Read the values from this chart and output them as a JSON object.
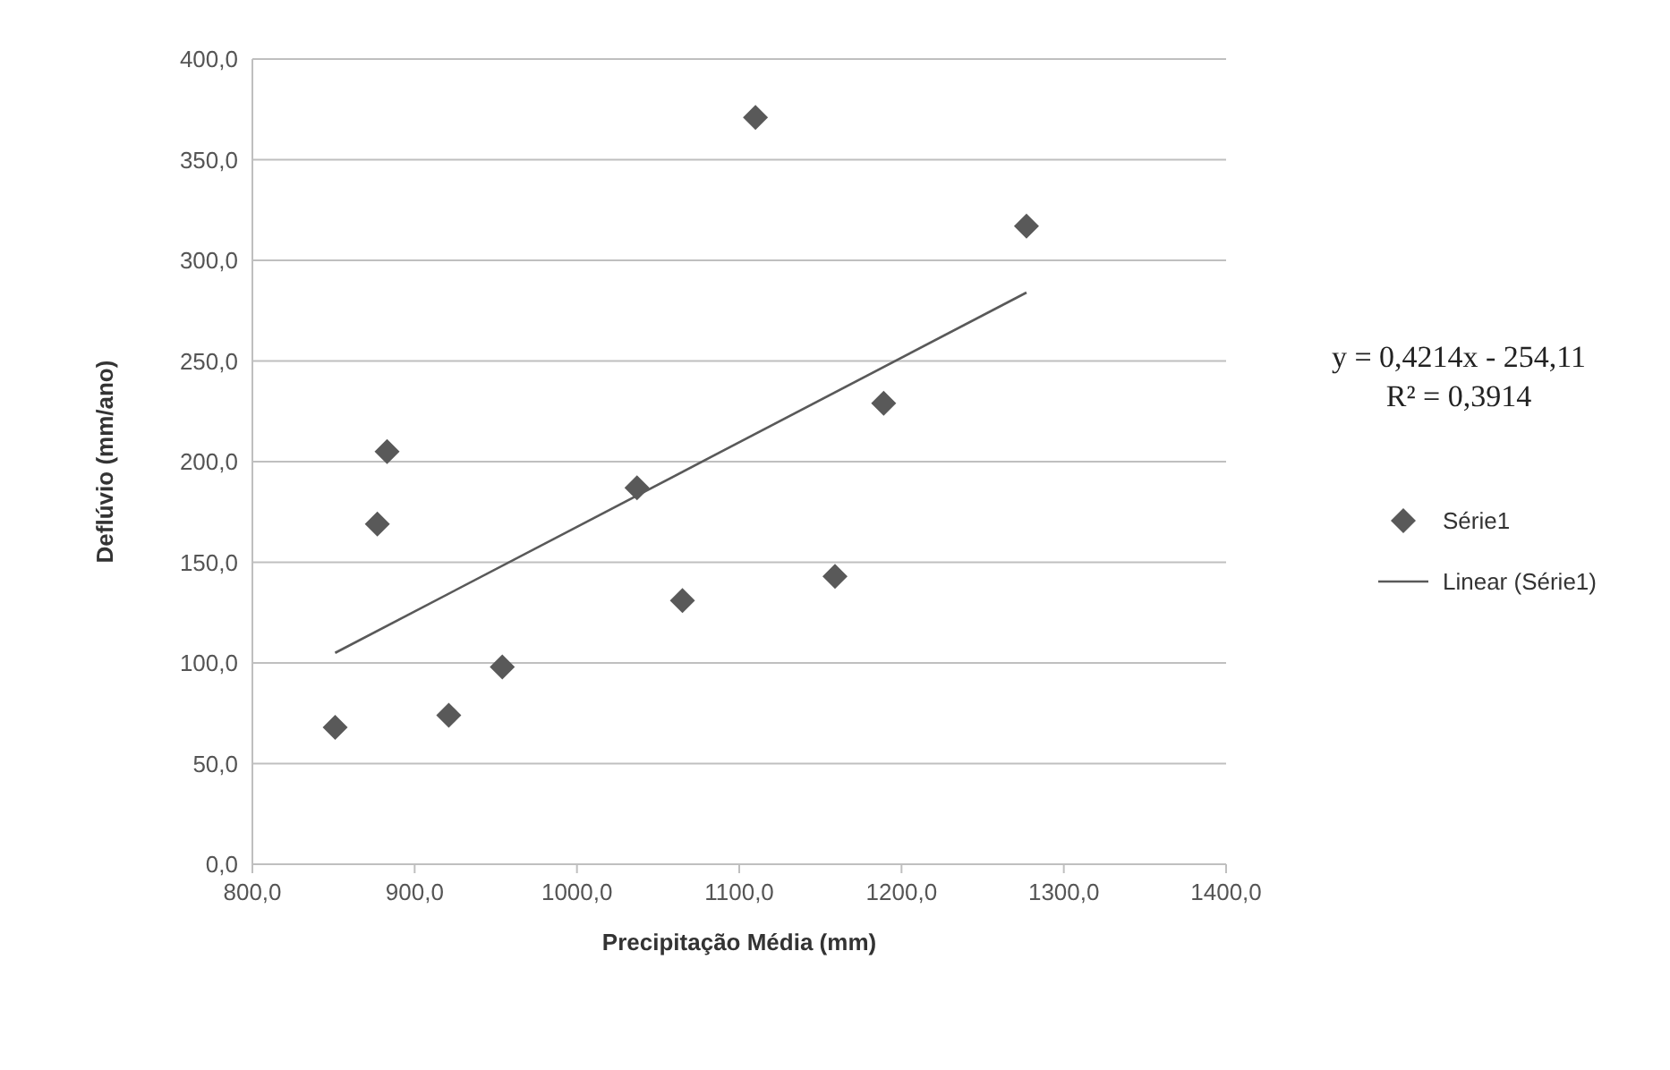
{
  "chart_data": {
    "type": "scatter",
    "xlabel": "Precipitação Média (mm)",
    "ylabel": "Deflúvio (mm/ano)",
    "xlim": [
      800,
      1400
    ],
    "xticks": [
      {
        "value": 800,
        "label": "800,0"
      },
      {
        "value": 900,
        "label": "900,0"
      },
      {
        "value": 1000,
        "label": "1000,0"
      },
      {
        "value": 1100,
        "label": "1100,0"
      },
      {
        "value": 1200,
        "label": "1200,0"
      },
      {
        "value": 1300,
        "label": "1300,0"
      },
      {
        "value": 1400,
        "label": "1400,0"
      }
    ],
    "ylim": [
      0,
      400
    ],
    "yticks": [
      {
        "value": 0,
        "label": "0,0"
      },
      {
        "value": 50,
        "label": "50,0"
      },
      {
        "value": 100,
        "label": "100,0"
      },
      {
        "value": 150,
        "label": "150,0"
      },
      {
        "value": 200,
        "label": "200,0"
      },
      {
        "value": 250,
        "label": "250,0"
      },
      {
        "value": 300,
        "label": "300,0"
      },
      {
        "value": 350,
        "label": "350,0"
      },
      {
        "value": 400,
        "label": "400,0"
      }
    ],
    "grid": "y",
    "legend": "right",
    "marker": "diamond",
    "series": [
      {
        "name": "Série1",
        "color": "#595959",
        "x": [
          851,
          877,
          883,
          921,
          954,
          1037,
          1065,
          1110,
          1159,
          1189,
          1277
        ],
        "values": [
          68,
          169,
          205,
          74,
          98,
          187,
          131,
          371,
          143,
          229,
          317
        ]
      },
      {
        "name": "Linear (Série1)",
        "type": "line",
        "color": "#595959",
        "marker": "none",
        "line_style": "solid",
        "x": [
          851,
          1277
        ],
        "values": [
          105,
          284
        ]
      }
    ],
    "annotations": [
      "y = 0,4214x - 254,11\nR² = 0,3914"
    ]
  }
}
